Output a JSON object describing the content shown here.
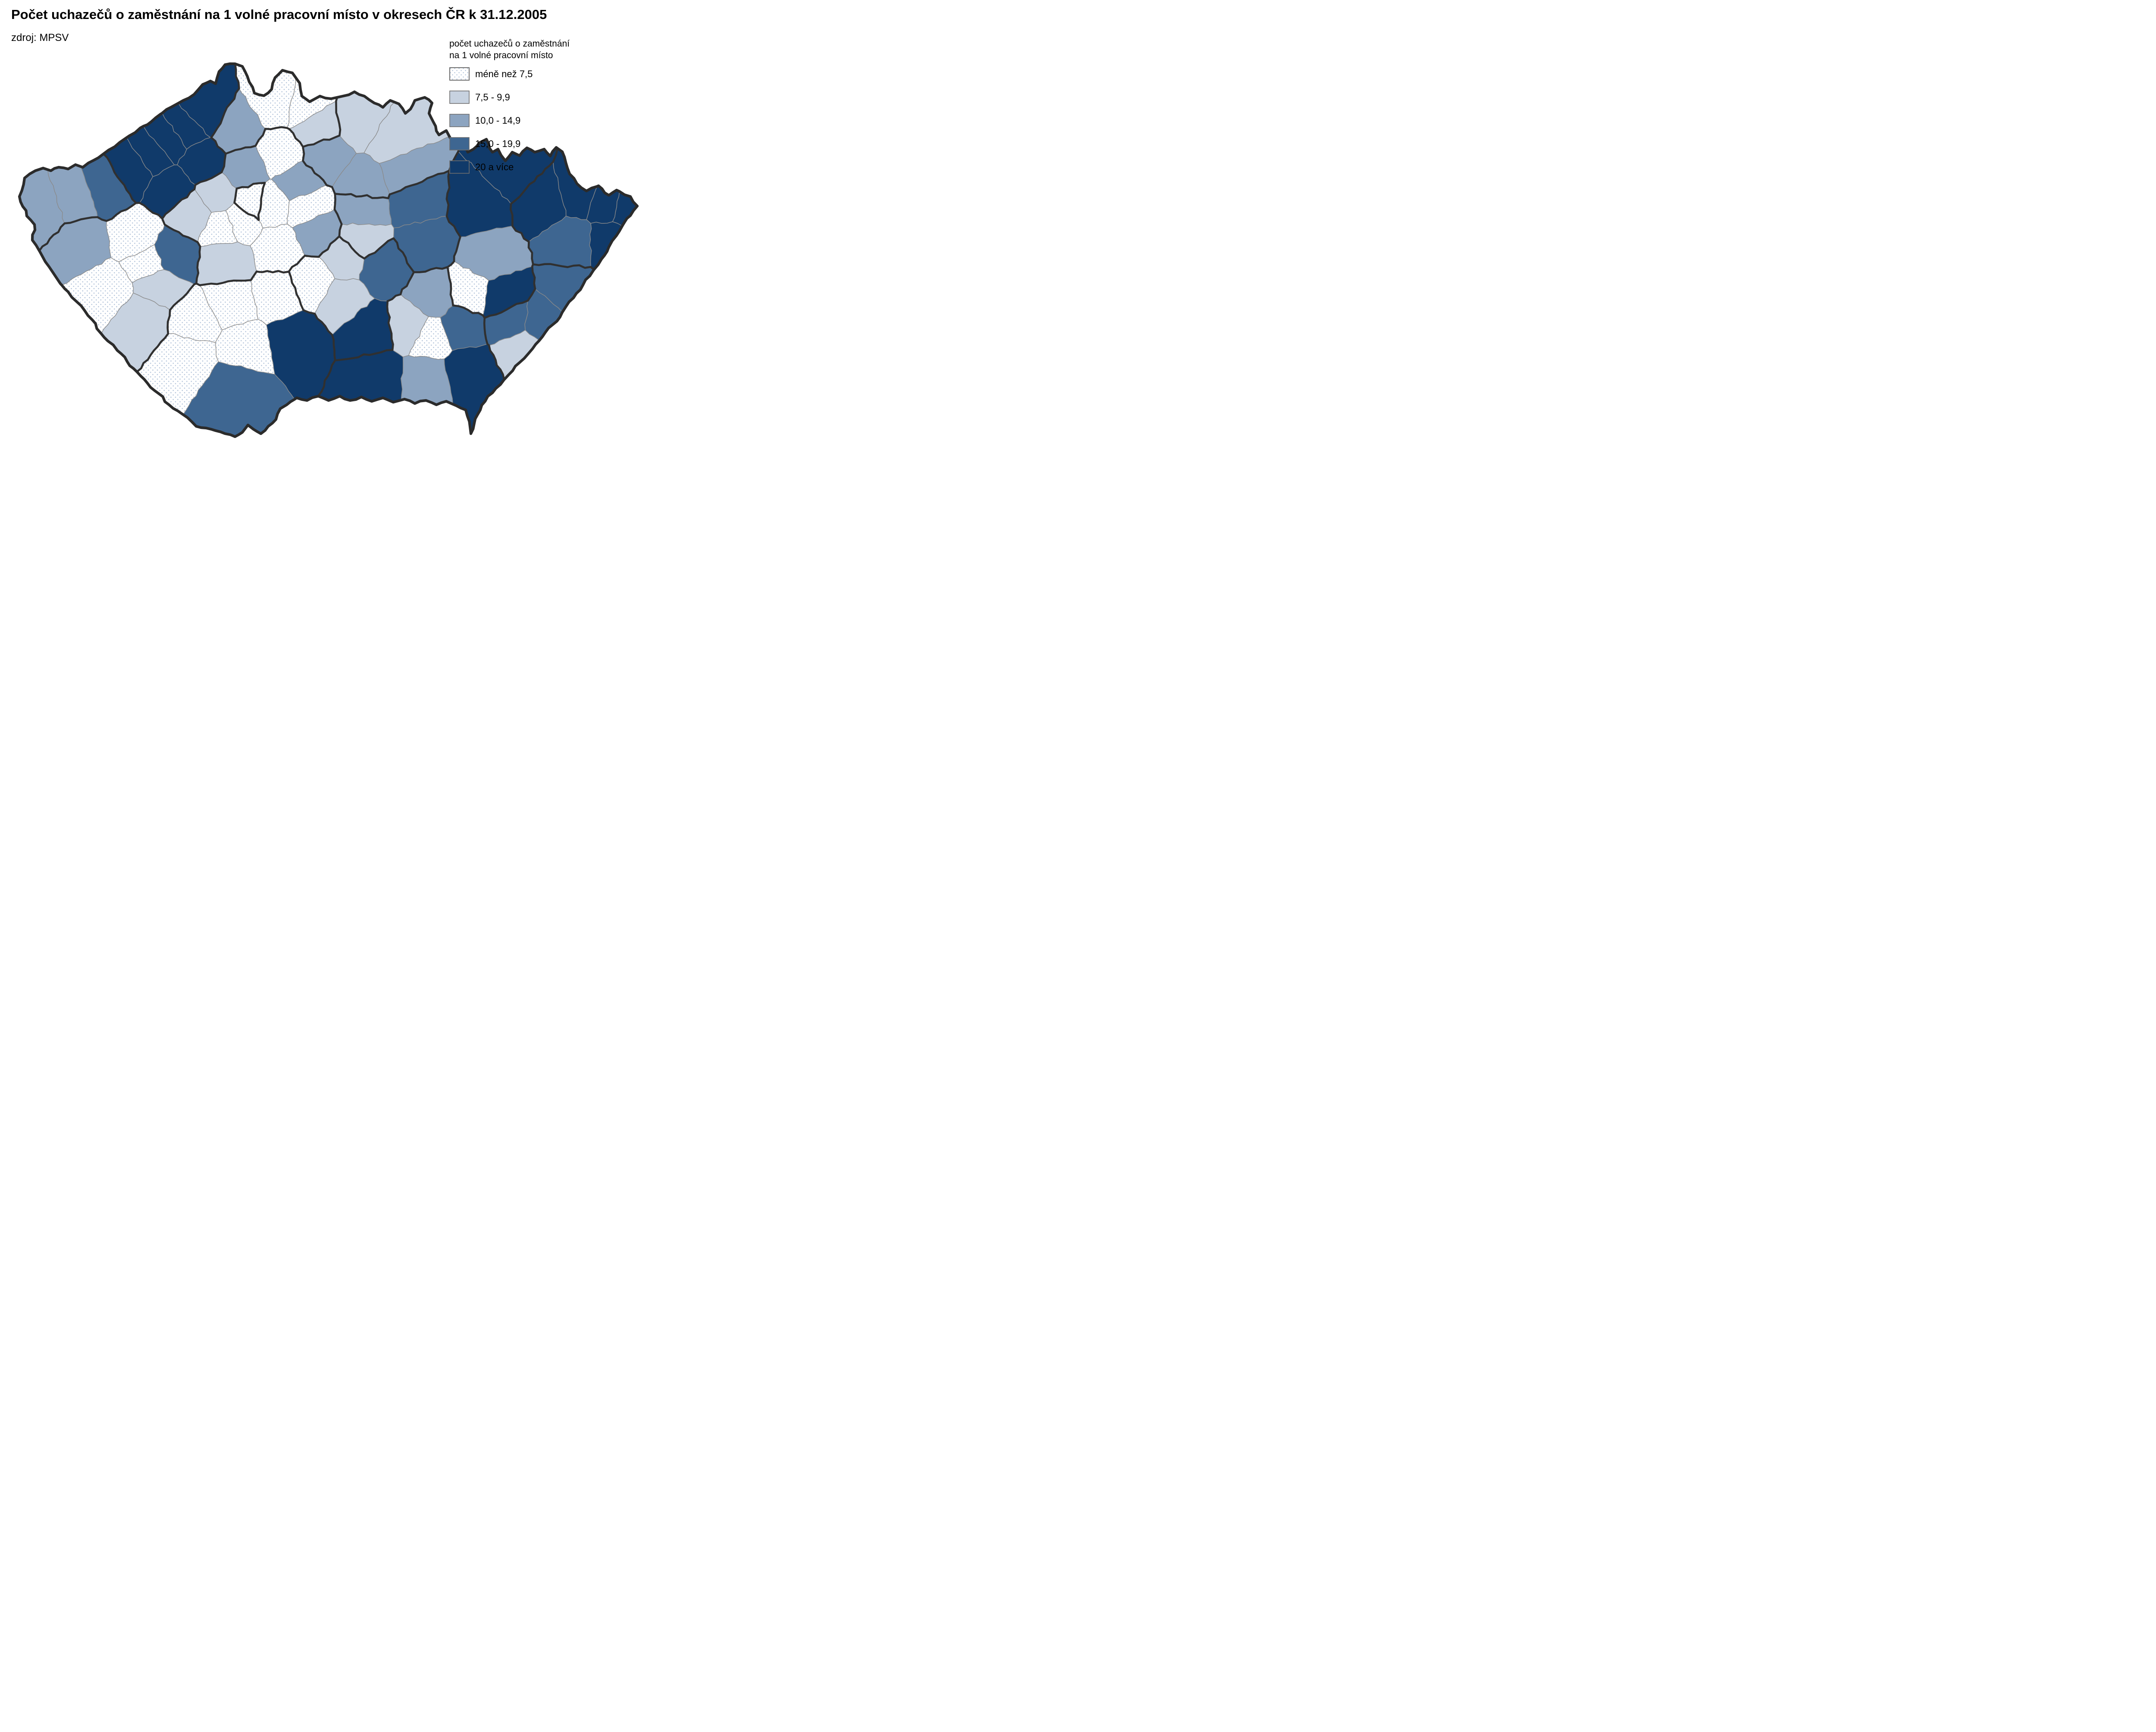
{
  "header": {
    "title": "Počet uchazečů o zaměstnání na 1 volné pracovní místo v okresech ČR k 31.12.2005",
    "source": "zdroj: MPSV"
  },
  "legend": {
    "title_line1": "počet uchazečů o zaměstnání",
    "title_line2": "na 1 volné pracovní místo",
    "classes": [
      {
        "label": "méně než 7,5",
        "fill": "dotted",
        "color": "#ffffff",
        "dot_color": "#b3c4da"
      },
      {
        "label": "7,5 - 9,9",
        "fill": "solid",
        "color": "#c7d2e0"
      },
      {
        "label": "10,0 - 14,9",
        "fill": "solid",
        "color": "#8ca4c0"
      },
      {
        "label": "15,0 - 19,9",
        "fill": "solid",
        "color": "#3e6691"
      },
      {
        "label": "20 a více",
        "fill": "solid",
        "color": "#103a6a"
      }
    ]
  },
  "map": {
    "stroke": {
      "country": "#2b2b2b",
      "region": "#303030",
      "district": "#8a8a8a"
    },
    "outline": [
      [
        57,
        413
      ],
      [
        82,
        396
      ],
      [
        100,
        390
      ],
      [
        118,
        396
      ],
      [
        136,
        388
      ],
      [
        158,
        392
      ],
      [
        175,
        382
      ],
      [
        192,
        388
      ],
      [
        205,
        378
      ],
      [
        228,
        366
      ],
      [
        252,
        348
      ],
      [
        278,
        330
      ],
      [
        300,
        315
      ],
      [
        325,
        297
      ],
      [
        350,
        283
      ],
      [
        372,
        265
      ],
      [
        398,
        248
      ],
      [
        425,
        233
      ],
      [
        450,
        219
      ],
      [
        470,
        196
      ],
      [
        488,
        188
      ],
      [
        500,
        194
      ],
      [
        508,
        166
      ],
      [
        522,
        150
      ],
      [
        545,
        148
      ],
      [
        562,
        154
      ],
      [
        578,
        190
      ],
      [
        590,
        216
      ],
      [
        612,
        222
      ],
      [
        630,
        207
      ],
      [
        638,
        180
      ],
      [
        655,
        163
      ],
      [
        678,
        169
      ],
      [
        695,
        193
      ],
      [
        700,
        223
      ],
      [
        718,
        236
      ],
      [
        742,
        223
      ],
      [
        768,
        229
      ],
      [
        795,
        223
      ],
      [
        822,
        213
      ],
      [
        845,
        223
      ],
      [
        868,
        239
      ],
      [
        888,
        249
      ],
      [
        905,
        233
      ],
      [
        925,
        241
      ],
      [
        940,
        263
      ],
      [
        952,
        253
      ],
      [
        962,
        233
      ],
      [
        985,
        226
      ],
      [
        1002,
        239
      ],
      [
        995,
        263
      ],
      [
        1005,
        283
      ],
      [
        1018,
        313
      ],
      [
        1035,
        303
      ],
      [
        1050,
        331
      ],
      [
        1068,
        323
      ],
      [
        1085,
        353
      ],
      [
        1098,
        346
      ],
      [
        1112,
        331
      ],
      [
        1128,
        323
      ],
      [
        1142,
        353
      ],
      [
        1155,
        346
      ],
      [
        1172,
        373
      ],
      [
        1188,
        353
      ],
      [
        1205,
        361
      ],
      [
        1222,
        343
      ],
      [
        1240,
        353
      ],
      [
        1262,
        346
      ],
      [
        1276,
        362
      ],
      [
        1290,
        342
      ],
      [
        1304,
        352
      ],
      [
        1316,
        390
      ],
      [
        1338,
        426
      ],
      [
        1360,
        443
      ],
      [
        1388,
        431
      ],
      [
        1412,
        453
      ],
      [
        1430,
        441
      ],
      [
        1462,
        456
      ],
      [
        1478,
        478
      ],
      [
        1462,
        500
      ],
      [
        1448,
        516
      ],
      [
        1430,
        546
      ],
      [
        1412,
        573
      ],
      [
        1395,
        601
      ],
      [
        1375,
        629
      ],
      [
        1352,
        661
      ],
      [
        1330,
        691
      ],
      [
        1305,
        723
      ],
      [
        1282,
        753
      ],
      [
        1258,
        781
      ],
      [
        1235,
        809
      ],
      [
        1205,
        841
      ],
      [
        1180,
        869
      ],
      [
        1150,
        901
      ],
      [
        1125,
        931
      ],
      [
        1108,
        961
      ],
      [
        1092,
        1006
      ],
      [
        1080,
        951
      ],
      [
        1058,
        941
      ],
      [
        1035,
        931
      ],
      [
        1012,
        939
      ],
      [
        988,
        929
      ],
      [
        962,
        936
      ],
      [
        938,
        926
      ],
      [
        912,
        933
      ],
      [
        888,
        923
      ],
      [
        862,
        931
      ],
      [
        838,
        921
      ],
      [
        812,
        929
      ],
      [
        788,
        919
      ],
      [
        762,
        929
      ],
      [
        738,
        919
      ],
      [
        712,
        929
      ],
      [
        688,
        923
      ],
      [
        665,
        939
      ],
      [
        650,
        948
      ],
      [
        640,
        973
      ],
      [
        622,
        989
      ],
      [
        605,
        1006
      ],
      [
        588,
        996
      ],
      [
        575,
        986
      ],
      [
        562,
        1003
      ],
      [
        545,
        1013
      ],
      [
        522,
        1006
      ],
      [
        500,
        999
      ],
      [
        478,
        993
      ],
      [
        455,
        989
      ],
      [
        435,
        969
      ],
      [
        412,
        953
      ],
      [
        392,
        939
      ],
      [
        368,
        913
      ],
      [
        342,
        889
      ],
      [
        318,
        863
      ],
      [
        295,
        839
      ],
      [
        272,
        813
      ],
      [
        250,
        791
      ],
      [
        232,
        771
      ],
      [
        214,
        742
      ],
      [
        196,
        720
      ],
      [
        178,
        700
      ],
      [
        158,
        677
      ],
      [
        140,
        658
      ],
      [
        122,
        631
      ],
      [
        105,
        607
      ],
      [
        92,
        583
      ],
      [
        75,
        557
      ],
      [
        80,
        521
      ],
      [
        62,
        501
      ],
      [
        45,
        456
      ]
    ],
    "districts": [
      {
        "id": "cheb",
        "kraj": "KVK",
        "cls": 2,
        "seed": [
          100,
          482
        ]
      },
      {
        "id": "sokolov",
        "kraj": "KVK",
        "cls": 2,
        "seed": [
          170,
          460
        ]
      },
      {
        "id": "karlovy-vary",
        "kraj": "KVK",
        "cls": 3,
        "seed": [
          245,
          435
        ]
      },
      {
        "id": "tachov",
        "kraj": "PLK",
        "cls": 2,
        "seed": [
          190,
          565
        ]
      },
      {
        "id": "domazlice",
        "kraj": "PLK",
        "cls": 0,
        "seed": [
          250,
          672
        ]
      },
      {
        "id": "klatovy",
        "kraj": "PLK",
        "cls": 1,
        "seed": [
          330,
          735
        ]
      },
      {
        "id": "plzen-sever",
        "kraj": "PLK",
        "cls": 0,
        "seed": [
          315,
          550
        ]
      },
      {
        "id": "plzen-mesto",
        "kraj": "PLK",
        "cls": 0,
        "seed": [
          345,
          612
        ]
      },
      {
        "id": "plzen-jih",
        "kraj": "PLK",
        "cls": 1,
        "seed": [
          365,
          660
        ]
      },
      {
        "id": "rokycany",
        "kraj": "PLK",
        "cls": 3,
        "seed": [
          398,
          592
        ]
      },
      {
        "id": "chomutov",
        "kraj": "ULK",
        "cls": 4,
        "seed": [
          310,
          392
        ]
      },
      {
        "id": "most",
        "kraj": "ULK",
        "cls": 4,
        "seed": [
          355,
          362
        ]
      },
      {
        "id": "teplice",
        "kraj": "ULK",
        "cls": 4,
        "seed": [
          395,
          330
        ]
      },
      {
        "id": "usti-nad-labem",
        "kraj": "ULK",
        "cls": 4,
        "seed": [
          432,
          305
        ]
      },
      {
        "id": "decin",
        "kraj": "ULK",
        "cls": 4,
        "seed": [
          478,
          262
        ]
      },
      {
        "id": "litomerice",
        "kraj": "ULK",
        "cls": 4,
        "seed": [
          465,
          372
        ]
      },
      {
        "id": "louny",
        "kraj": "ULK",
        "cls": 4,
        "seed": [
          395,
          435
        ]
      },
      {
        "id": "ceska-lipa",
        "kraj": "LBK",
        "cls": 2,
        "seed": [
          545,
          300
        ]
      },
      {
        "id": "liberec",
        "kraj": "LBK",
        "cls": 0,
        "seed": [
          645,
          235
        ]
      },
      {
        "id": "jablonec-nad-nisou",
        "kraj": "LBK",
        "cls": 0,
        "seed": [
          705,
          245
        ]
      },
      {
        "id": "semily",
        "kraj": "LBK",
        "cls": 1,
        "seed": [
          735,
          295
        ]
      },
      {
        "id": "jicin",
        "kraj": "HKK",
        "cls": 2,
        "seed": [
          755,
          360
        ]
      },
      {
        "id": "trutnov",
        "kraj": "HKK",
        "cls": 1,
        "seed": [
          835,
          285
        ]
      },
      {
        "id": "nachod",
        "kraj": "HKK",
        "cls": 1,
        "seed": [
          910,
          330
        ]
      },
      {
        "id": "hradec-kralove",
        "kraj": "HKK",
        "cls": 2,
        "seed": [
          845,
          425
        ]
      },
      {
        "id": "rychnov-nad-kneznou",
        "kraj": "HKK",
        "cls": 2,
        "seed": [
          935,
          395
        ]
      },
      {
        "id": "pardubice",
        "kraj": "PAK",
        "cls": 2,
        "seed": [
          840,
          485
        ]
      },
      {
        "id": "chrudim",
        "kraj": "PAK",
        "cls": 1,
        "seed": [
          840,
          555
        ]
      },
      {
        "id": "usti-nad-orlici",
        "kraj": "PAK",
        "cls": 3,
        "seed": [
          965,
          470
        ]
      },
      {
        "id": "svitavy",
        "kraj": "PAK",
        "cls": 3,
        "seed": [
          985,
          560
        ]
      },
      {
        "id": "mlada-boleslav",
        "kraj": "STC",
        "cls": 0,
        "seed": [
          650,
          360
        ]
      },
      {
        "id": "melnik",
        "kraj": "STC",
        "cls": 2,
        "seed": [
          570,
          395
        ]
      },
      {
        "id": "kladno",
        "kraj": "STC",
        "cls": 1,
        "seed": [
          505,
          455
        ]
      },
      {
        "id": "rakovnik",
        "kraj": "STC",
        "cls": 1,
        "seed": [
          450,
          495
        ]
      },
      {
        "id": "beroun",
        "kraj": "STC",
        "cls": 0,
        "seed": [
          515,
          525
        ]
      },
      {
        "id": "praha-zapad",
        "kraj": "STC",
        "cls": 0,
        "seed": [
          555,
          510
        ]
      },
      {
        "id": "praha-vychod",
        "kraj": "STC",
        "cls": 0,
        "seed": [
          628,
          475
        ]
      },
      {
        "id": "nymburk",
        "kraj": "STC",
        "cls": 2,
        "seed": [
          688,
          425
        ]
      },
      {
        "id": "kolin",
        "kraj": "STC",
        "cls": 0,
        "seed": [
          712,
          482
        ]
      },
      {
        "id": "kutna-hora",
        "kraj": "STC",
        "cls": 2,
        "seed": [
          735,
          535
        ]
      },
      {
        "id": "benesov",
        "kraj": "STC",
        "cls": 0,
        "seed": [
          645,
          575
        ]
      },
      {
        "id": "pribram",
        "kraj": "STC",
        "cls": 1,
        "seed": [
          525,
          605
        ]
      },
      {
        "id": "praha",
        "kraj": "PHA",
        "cls": 0,
        "seed": [
          585,
          468
        ]
      },
      {
        "id": "tabor",
        "kraj": "JHC",
        "cls": 0,
        "seed": [
          645,
          685
        ]
      },
      {
        "id": "pisek",
        "kraj": "JHC",
        "cls": 0,
        "seed": [
          535,
          705
        ]
      },
      {
        "id": "strakonice",
        "kraj": "JHC",
        "cls": 0,
        "seed": [
          455,
          745
        ]
      },
      {
        "id": "prachatice",
        "kraj": "JHC",
        "cls": 0,
        "seed": [
          440,
          825
        ]
      },
      {
        "id": "ceske-budejovice",
        "kraj": "JHC",
        "cls": 0,
        "seed": [
          565,
          805
        ]
      },
      {
        "id": "cesky-krumlov",
        "kraj": "JHC",
        "cls": 3,
        "seed": [
          545,
          895
        ]
      },
      {
        "id": "jindrichuv-hradec",
        "kraj": "JHC",
        "cls": 4,
        "seed": [
          685,
          785
        ]
      },
      {
        "id": "pelhrimov",
        "kraj": "VYS",
        "cls": 0,
        "seed": [
          725,
          655
        ]
      },
      {
        "id": "havlickuv-brod",
        "kraj": "VYS",
        "cls": 1,
        "seed": [
          800,
          600
        ]
      },
      {
        "id": "jihlava",
        "kraj": "VYS",
        "cls": 1,
        "seed": [
          795,
          695
        ]
      },
      {
        "id": "zdar-nad-sazavou",
        "kraj": "VYS",
        "cls": 3,
        "seed": [
          885,
          620
        ]
      },
      {
        "id": "trebic",
        "kraj": "VYS",
        "cls": 4,
        "seed": [
          855,
          765
        ]
      },
      {
        "id": "znojmo",
        "kraj": "JHM",
        "cls": 4,
        "seed": [
          875,
          875
        ]
      },
      {
        "id": "breclav",
        "kraj": "JHM",
        "cls": 2,
        "seed": [
          990,
          880
        ]
      },
      {
        "id": "hodonin",
        "kraj": "JHM",
        "cls": 4,
        "seed": [
          1085,
          862
        ]
      },
      {
        "id": "brno-venkov",
        "kraj": "JHM",
        "cls": 1,
        "seed": [
          955,
          755
        ]
      },
      {
        "id": "brno-mesto",
        "kraj": "JHM",
        "cls": 0,
        "seed": [
          1000,
          778
        ]
      },
      {
        "id": "blansko",
        "kraj": "JHM",
        "cls": 2,
        "seed": [
          1005,
          692
        ]
      },
      {
        "id": "vyskov",
        "kraj": "JHM",
        "cls": 3,
        "seed": [
          1065,
          755
        ]
      },
      {
        "id": "prostejov",
        "kraj": "OLK",
        "cls": 0,
        "seed": [
          1090,
          680
        ]
      },
      {
        "id": "olomouc",
        "kraj": "OLK",
        "cls": 2,
        "seed": [
          1135,
          598
        ]
      },
      {
        "id": "prerov",
        "kraj": "OLK",
        "cls": 4,
        "seed": [
          1165,
          692
        ]
      },
      {
        "id": "sumperk",
        "kraj": "OLK",
        "cls": 4,
        "seed": [
          1110,
          478
        ]
      },
      {
        "id": "jesenik",
        "kraj": "OLK",
        "cls": 4,
        "seed": [
          1190,
          398
        ]
      },
      {
        "id": "kromeriz",
        "kraj": "ZLK",
        "cls": 3,
        "seed": [
          1185,
          742
        ]
      },
      {
        "id": "zlin",
        "kraj": "ZLK",
        "cls": 3,
        "seed": [
          1255,
          748
        ]
      },
      {
        "id": "vsetin",
        "kraj": "ZLK",
        "cls": 3,
        "seed": [
          1320,
          672
        ]
      },
      {
        "id": "uherske-hradiste",
        "kraj": "ZLK",
        "cls": 1,
        "seed": [
          1212,
          806
        ]
      },
      {
        "id": "bruntal",
        "kraj": "MSK",
        "cls": 4,
        "seed": [
          1260,
          468
        ]
      },
      {
        "id": "opava",
        "kraj": "MSK",
        "cls": 4,
        "seed": [
          1345,
          448
        ]
      },
      {
        "id": "ostrava-mesto",
        "kraj": "MSK",
        "cls": 4,
        "seed": [
          1408,
          468
        ]
      },
      {
        "id": "karvina",
        "kraj": "MSK",
        "cls": 4,
        "seed": [
          1452,
          478
        ]
      },
      {
        "id": "novy-jicin",
        "kraj": "MSK",
        "cls": 3,
        "seed": [
          1325,
          562
        ]
      },
      {
        "id": "frydek-mistek",
        "kraj": "MSK",
        "cls": 4,
        "seed": [
          1415,
          562
        ]
      }
    ]
  }
}
